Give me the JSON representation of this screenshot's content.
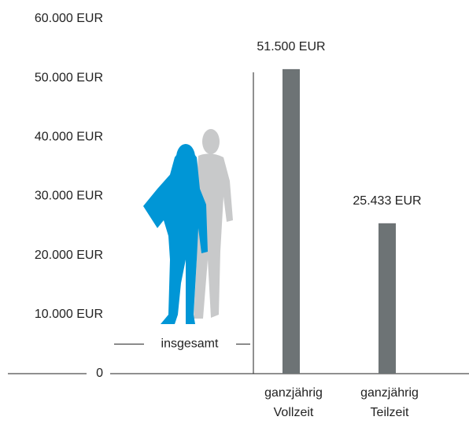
{
  "chart_data": {
    "type": "bar",
    "categories": [
      [
        "ganzjährig",
        "Vollzeit"
      ],
      [
        "ganzjährig",
        "Teilzeit"
      ]
    ],
    "values": [
      51500,
      25433
    ],
    "value_labels": [
      "51.500 EUR",
      "25.433 EUR"
    ],
    "color": "#6d7375",
    "ylim": [
      0,
      60000
    ],
    "yticks": [
      0,
      {
        "value": 10000,
        "label": "10.000 EUR"
      },
      {
        "value": 20000,
        "label": "20.000 EUR"
      },
      {
        "value": 30000,
        "label": "30.000 EUR"
      },
      {
        "value": 40000,
        "label": "40.000 EUR"
      },
      {
        "value": 50000,
        "label": "50.000 EUR"
      },
      {
        "value": 60000,
        "label": "60.000 EUR"
      }
    ],
    "annotation": {
      "label": "insgesamt",
      "value": 5000
    }
  }
}
